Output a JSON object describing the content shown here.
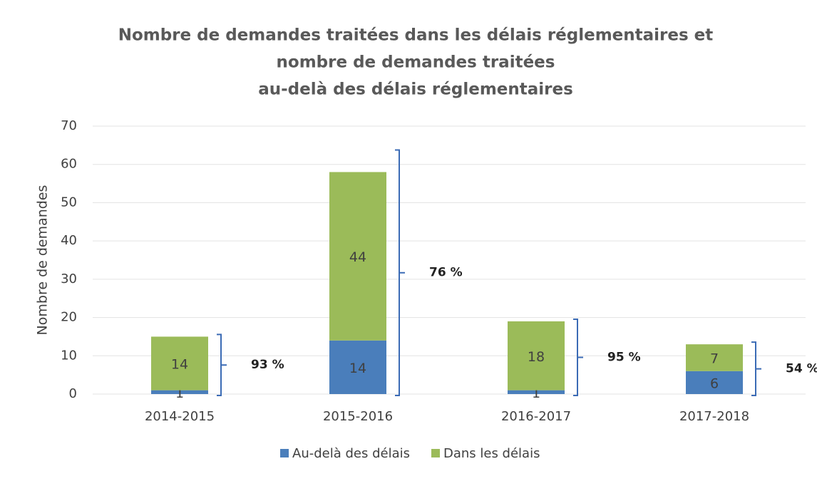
{
  "chart_data": {
    "type": "stacked_bar",
    "title": [
      "Nombre de demandes traitées dans les délais réglementaires et",
      "nombre de demandes traitées",
      "au-delà des délais réglementaires"
    ],
    "y_label": "Nombre de demandes",
    "categories": [
      "2014-2015",
      "2015-2016",
      "2016-2017",
      "2017-2018"
    ],
    "series": [
      {
        "name": "Au-delà des délais",
        "color": "#4a7ebb",
        "values": [
          1,
          14,
          1,
          6
        ]
      },
      {
        "name": "Dans les délais",
        "color": "#9bbb59",
        "values": [
          14,
          44,
          18,
          7
        ]
      }
    ],
    "annotations": [
      "93 %",
      "76 %",
      "95 %",
      "54 %"
    ],
    "ylim": [
      0,
      70
    ],
    "yticks": [
      0,
      10,
      20,
      30,
      40,
      50,
      60,
      70
    ],
    "grid": true,
    "legend": "bottom"
  }
}
